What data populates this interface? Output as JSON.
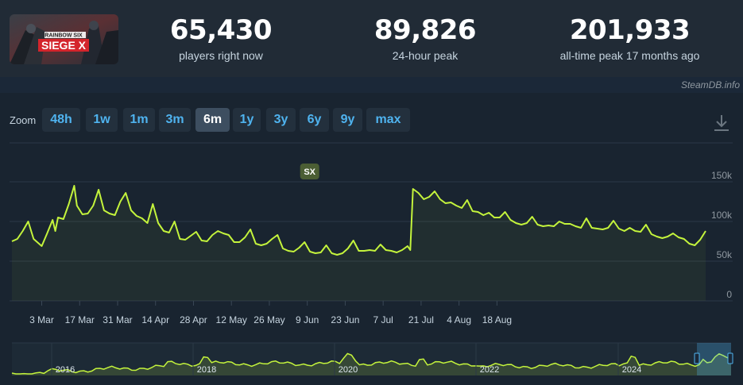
{
  "header": {
    "logo_alt": "SIEGE X",
    "stats": [
      {
        "value": "65,430",
        "label": "players right now"
      },
      {
        "value": "89,826",
        "label": "24-hour peak"
      },
      {
        "value": "201,933",
        "label": "all-time peak 17 months ago"
      }
    ]
  },
  "brand": "SteamDB.info",
  "zoom": {
    "label": "Zoom",
    "buttons": [
      "48h",
      "1w",
      "1m",
      "3m",
      "6m",
      "1y",
      "3y",
      "6y",
      "9y",
      "max"
    ],
    "active": "6m"
  },
  "colors": {
    "line": "#c4f43c",
    "page_bg": "#1b2838",
    "panel_bg": "#192430",
    "button_text": "#4fb3ef"
  },
  "chart_data": {
    "type": "line",
    "y_ticks": [
      "0",
      "50k",
      "100k",
      "150k"
    ],
    "y_values": [
      0,
      50000,
      100000,
      150000
    ],
    "ylim": [
      0,
      150000
    ],
    "x_ticks": [
      "3 Mar",
      "17 Mar",
      "31 Mar",
      "14 Apr",
      "28 Apr",
      "12 May",
      "26 May",
      "9 Jun",
      "23 Jun",
      "7 Jul",
      "21 Jul",
      "4 Aug",
      "18 Aug"
    ],
    "annotation": {
      "label": "SX",
      "date": "9 Jun"
    },
    "series": [
      {
        "values": [
          [
            -11,
            75000
          ],
          [
            -9,
            78000
          ],
          [
            -7,
            88000
          ],
          [
            -5,
            100000
          ],
          [
            -3,
            78000
          ],
          [
            -1,
            72000
          ],
          [
            0,
            69000
          ],
          [
            2,
            85000
          ],
          [
            4,
            102000
          ],
          [
            5,
            88000
          ],
          [
            6,
            105000
          ],
          [
            8,
            103000
          ],
          [
            10,
            122000
          ],
          [
            12,
            145000
          ],
          [
            13,
            120000
          ],
          [
            15,
            109000
          ],
          [
            17,
            110000
          ],
          [
            19,
            120000
          ],
          [
            21,
            140000
          ],
          [
            23,
            114000
          ],
          [
            25,
            110000
          ],
          [
            27,
            108000
          ],
          [
            29,
            125000
          ],
          [
            31,
            136000
          ],
          [
            33,
            114000
          ],
          [
            35,
            107000
          ],
          [
            37,
            104000
          ],
          [
            39,
            98000
          ],
          [
            41,
            122000
          ],
          [
            43,
            98000
          ],
          [
            45,
            88000
          ],
          [
            47,
            86000
          ],
          [
            49,
            100000
          ],
          [
            51,
            78000
          ],
          [
            53,
            77000
          ],
          [
            55,
            82000
          ],
          [
            57,
            87000
          ],
          [
            59,
            76000
          ],
          [
            61,
            75000
          ],
          [
            63,
            83000
          ],
          [
            65,
            88000
          ],
          [
            67,
            85000
          ],
          [
            69,
            83000
          ],
          [
            71,
            74000
          ],
          [
            73,
            74000
          ],
          [
            75,
            80000
          ],
          [
            77,
            90000
          ],
          [
            79,
            72000
          ],
          [
            81,
            70000
          ],
          [
            83,
            72000
          ],
          [
            85,
            78000
          ],
          [
            87,
            83000
          ],
          [
            89,
            66000
          ],
          [
            91,
            63000
          ],
          [
            93,
            62000
          ],
          [
            95,
            67000
          ],
          [
            97,
            74000
          ],
          [
            99,
            62000
          ],
          [
            101,
            60000
          ],
          [
            103,
            61000
          ],
          [
            105,
            70000
          ],
          [
            107,
            60000
          ],
          [
            109,
            58000
          ],
          [
            111,
            60000
          ],
          [
            113,
            66000
          ],
          [
            115,
            76000
          ],
          [
            117,
            63000
          ],
          [
            119,
            63000
          ],
          [
            121,
            64000
          ],
          [
            123,
            63000
          ],
          [
            125,
            71000
          ],
          [
            127,
            64000
          ],
          [
            129,
            63000
          ],
          [
            131,
            61000
          ],
          [
            133,
            64000
          ],
          [
            135,
            69000
          ],
          [
            136,
            64000
          ],
          [
            137,
            141000
          ],
          [
            139,
            136000
          ],
          [
            141,
            128000
          ],
          [
            143,
            131000
          ],
          [
            145,
            138000
          ],
          [
            147,
            128000
          ],
          [
            149,
            123000
          ],
          [
            151,
            124000
          ],
          [
            153,
            120000
          ],
          [
            155,
            117000
          ],
          [
            157,
            127000
          ],
          [
            159,
            113000
          ],
          [
            161,
            112000
          ],
          [
            163,
            108000
          ],
          [
            165,
            111000
          ],
          [
            167,
            105000
          ],
          [
            169,
            105000
          ],
          [
            171,
            112000
          ],
          [
            173,
            102000
          ],
          [
            175,
            98000
          ],
          [
            177,
            96000
          ],
          [
            179,
            98000
          ],
          [
            181,
            106000
          ],
          [
            183,
            96000
          ],
          [
            185,
            94000
          ],
          [
            187,
            95000
          ],
          [
            189,
            94000
          ],
          [
            191,
            100000
          ],
          [
            193,
            97000
          ],
          [
            195,
            97000
          ],
          [
            197,
            94000
          ],
          [
            199,
            92000
          ],
          [
            201,
            104000
          ],
          [
            203,
            92000
          ],
          [
            205,
            91000
          ],
          [
            207,
            90000
          ],
          [
            209,
            92000
          ],
          [
            211,
            101000
          ],
          [
            213,
            91000
          ],
          [
            215,
            88000
          ],
          [
            217,
            92000
          ],
          [
            219,
            88000
          ],
          [
            221,
            87000
          ],
          [
            223,
            96000
          ],
          [
            225,
            84000
          ],
          [
            227,
            81000
          ],
          [
            229,
            79000
          ],
          [
            231,
            81000
          ],
          [
            233,
            85000
          ],
          [
            235,
            80000
          ],
          [
            237,
            78000
          ],
          [
            239,
            72000
          ],
          [
            241,
            70000
          ],
          [
            243,
            77000
          ],
          [
            245,
            88000
          ]
        ]
      }
    ],
    "overview": {
      "type": "area",
      "x_ticks": [
        "2016",
        "2018",
        "2020",
        "2022",
        "2024"
      ],
      "selection": "last 6 months"
    }
  }
}
